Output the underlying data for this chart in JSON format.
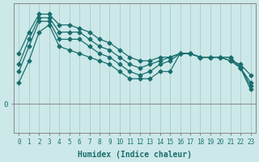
{
  "xlabel": "Humidex (Indice chaleur)",
  "background_color": "#cce8e8",
  "grid_color": "#aacccc",
  "line_color": "#1a6e6e",
  "zero_line_color": "#888888",
  "x_ticks": [
    0,
    1,
    2,
    3,
    4,
    5,
    6,
    7,
    8,
    9,
    10,
    11,
    12,
    13,
    14,
    15,
    16,
    17,
    18,
    19,
    20,
    21,
    22,
    23
  ],
  "series": [
    [
      14,
      20,
      25,
      25,
      22,
      22,
      21,
      20,
      18,
      17,
      15,
      13,
      12,
      12,
      13,
      13,
      14,
      14,
      13,
      13,
      13,
      12,
      11,
      8
    ],
    [
      11,
      18,
      24,
      24,
      20,
      20,
      20,
      18,
      16,
      15,
      13,
      11,
      10,
      11,
      12,
      13,
      14,
      14,
      13,
      13,
      13,
      12,
      10,
      6
    ],
    [
      9,
      16,
      23,
      23,
      18,
      18,
      18,
      16,
      14,
      13,
      11,
      9,
      8,
      9,
      11,
      12,
      14,
      14,
      13,
      13,
      13,
      13,
      10,
      5
    ],
    [
      6,
      12,
      20,
      22,
      16,
      15,
      14,
      13,
      12,
      11,
      9,
      7,
      7,
      7,
      9,
      9,
      14,
      14,
      13,
      13,
      13,
      13,
      10,
      4
    ]
  ],
  "ylim": [
    -8,
    28
  ],
  "y_tick_val": 0,
  "y_tick_label": "0",
  "marker": "D",
  "marker_size": 2.5,
  "line_width": 0.9,
  "xlabel_fontsize": 7,
  "tick_fontsize": 5.5
}
